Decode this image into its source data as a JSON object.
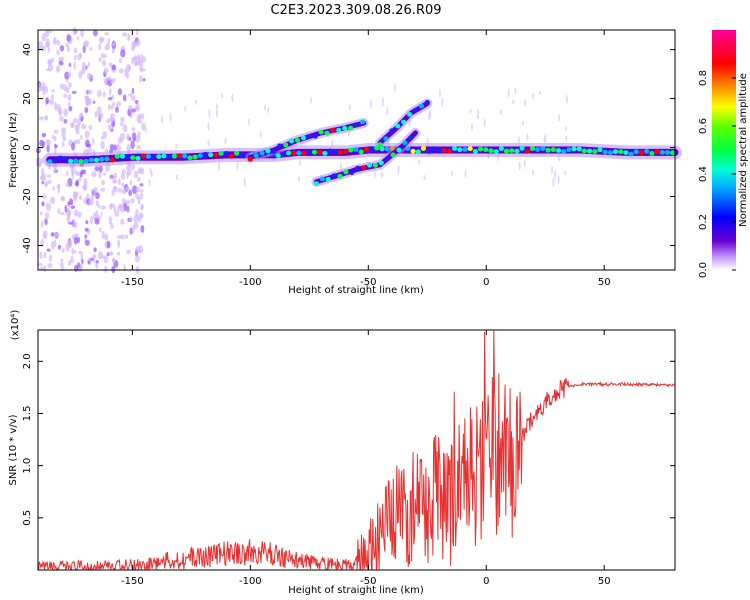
{
  "title": "C2E3.2023.309.08.26.R09",
  "chart_data": [
    {
      "type": "heatmap",
      "xlabel": "Height of straight line (km)",
      "ylabel": "Frequency (Hz)",
      "xlim": [
        -190,
        80
      ],
      "ylim": [
        -50,
        48
      ],
      "x_ticks": [
        -150,
        -100,
        -50,
        0,
        50
      ],
      "y_ticks": [
        -40,
        -20,
        0,
        20,
        40
      ],
      "colorbar": {
        "label": "Normalized spectral amplitude",
        "range": [
          0,
          1
        ],
        "ticks": [
          0.0,
          0.2,
          0.4,
          0.6,
          0.8
        ],
        "tick_labels": [
          "0.0",
          "0.2",
          "0.4",
          "0.6",
          "0.8"
        ],
        "colors": [
          "#ffffff",
          "#5a00c8",
          "#0000ff",
          "#00c8ff",
          "#00ff80",
          "#00ff00",
          "#ffff00",
          "#ff8000",
          "#ff0000",
          "#ff0090"
        ]
      },
      "traces": [
        {
          "name": "main",
          "x": [
            -185,
            -170,
            -150,
            -130,
            -110,
            -100,
            -90,
            -80,
            -70,
            -60,
            -50,
            -40,
            -30,
            -20,
            -10,
            0,
            20,
            40,
            60,
            80
          ],
          "y": [
            -5,
            -5,
            -4,
            -4,
            -3,
            -3,
            -3,
            -2,
            -2,
            -2,
            -1,
            -1,
            -1,
            -1,
            -1,
            -1,
            -1,
            -1,
            -2,
            -2
          ]
        },
        {
          "name": "rising",
          "x": [
            -100,
            -90,
            -80,
            -70,
            -60,
            -52
          ],
          "y": [
            -4,
            -1,
            3,
            6,
            8,
            10
          ]
        },
        {
          "name": "lower",
          "x": [
            -72,
            -65,
            -55,
            -45,
            -40,
            -35,
            -30
          ],
          "y": [
            -14,
            -12,
            -9,
            -7,
            -3,
            1,
            6
          ]
        },
        {
          "name": "upper",
          "x": [
            -45,
            -38,
            -32,
            -25
          ],
          "y": [
            2,
            8,
            14,
            18
          ]
        }
      ]
    },
    {
      "type": "line",
      "xlabel": "Height of straight line (km)",
      "ylabel": "SNR (10 * v/v)",
      "y_multiplier": "(x10⁴)",
      "xlim": [
        -190,
        80
      ],
      "ylim": [
        0,
        2.3
      ],
      "x_ticks": [
        -150,
        -100,
        -50,
        0,
        50
      ],
      "y_ticks": [
        0.5,
        1.0,
        1.5,
        2.0
      ],
      "y_tick_labels": [
        "0.5",
        "1.0",
        "1.5",
        "2.0"
      ],
      "color": "#e83030",
      "series": [
        {
          "x": [
            -190,
            -170,
            -150,
            -140,
            -130,
            -120,
            -110,
            -100,
            -90,
            -80,
            -70,
            -60,
            -55,
            -50,
            -45,
            -40,
            -35,
            -30,
            -25,
            -20,
            -15,
            -10,
            -5,
            0,
            5,
            10,
            15,
            20,
            25,
            30,
            35,
            40,
            50,
            60,
            70,
            80
          ],
          "y": [
            0.02,
            0.03,
            0.04,
            0.07,
            0.1,
            0.13,
            0.16,
            0.17,
            0.15,
            0.09,
            0.05,
            0.04,
            0.07,
            0.14,
            0.3,
            0.45,
            0.55,
            0.6,
            0.62,
            0.7,
            0.62,
            0.8,
            0.9,
            0.98,
            1.08,
            1.15,
            1.3,
            1.45,
            1.6,
            1.72,
            1.76,
            1.78,
            1.78,
            1.78,
            1.78,
            1.77
          ]
        }
      ]
    }
  ]
}
